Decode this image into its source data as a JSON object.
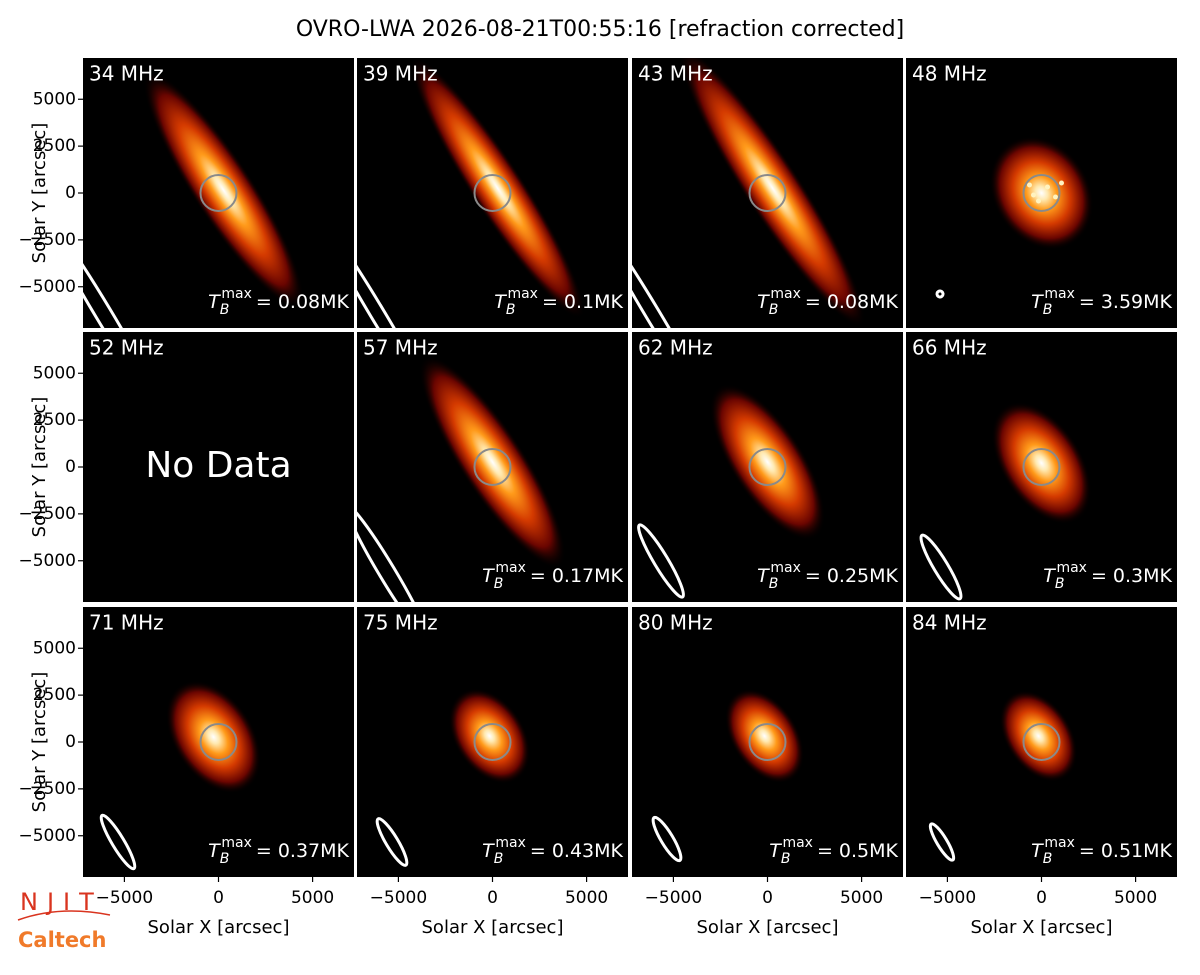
{
  "title": "OVRO-LWA 2026-08-21T00:55:16 [refraction corrected]",
  "logos": {
    "njit": "NJIT",
    "caltech": "Caltech"
  },
  "chart_data": {
    "type": "image-grid",
    "xlabel": "Solar X [arcsec]",
    "ylabel": "Solar Y [arcsec]",
    "xlim": [
      -7200,
      7200
    ],
    "ylim": [
      -7200,
      7200
    ],
    "xticks": [
      {
        "value": -5000,
        "label": "−5000"
      },
      0,
      5000
    ],
    "yticks": [
      {
        "value": -5000,
        "label": "−5000"
      },
      {
        "value": -2500,
        "label": "−2500"
      },
      0,
      2500,
      5000
    ],
    "colormap": "hot",
    "panels": [
      {
        "title": "34 MHz",
        "tb_max": {
          "symbol": "T",
          "sub": "B",
          "sup": "max",
          "text": "= 0.08MK"
        }
      },
      {
        "title": "39 MHz",
        "tb_max": {
          "symbol": "T",
          "sub": "B",
          "sup": "max",
          "text": "= 0.1MK"
        }
      },
      {
        "title": "43 MHz",
        "tb_max": {
          "symbol": "T",
          "sub": "B",
          "sup": "max",
          "text": "= 0.08MK"
        }
      },
      {
        "title": "48 MHz",
        "tb_max": {
          "symbol": "T",
          "sub": "B",
          "sup": "max",
          "text": "= 3.59MK"
        }
      },
      {
        "title": "52 MHz",
        "note": "No Data"
      },
      {
        "title": "57 MHz",
        "tb_max": {
          "symbol": "T",
          "sub": "B",
          "sup": "max",
          "text": "= 0.17MK"
        }
      },
      {
        "title": "62 MHz",
        "tb_max": {
          "symbol": "T",
          "sub": "B",
          "sup": "max",
          "text": "= 0.25MK"
        }
      },
      {
        "title": "66 MHz",
        "tb_max": {
          "symbol": "T",
          "sub": "B",
          "sup": "max",
          "text": "= 0.3MK"
        }
      },
      {
        "title": "71 MHz",
        "tb_max": {
          "symbol": "T",
          "sub": "B",
          "sup": "max",
          "text": "= 0.37MK"
        }
      },
      {
        "title": "75 MHz",
        "tb_max": {
          "symbol": "T",
          "sub": "B",
          "sup": "max",
          "text": "= 0.43MK"
        }
      },
      {
        "title": "80 MHz",
        "tb_max": {
          "symbol": "T",
          "sub": "B",
          "sup": "max",
          "text": "= 0.5MK"
        }
      },
      {
        "title": "84 MHz",
        "tb_max": {
          "symbol": "T",
          "sub": "B",
          "sup": "max",
          "text": "= 0.51MK"
        }
      }
    ]
  }
}
